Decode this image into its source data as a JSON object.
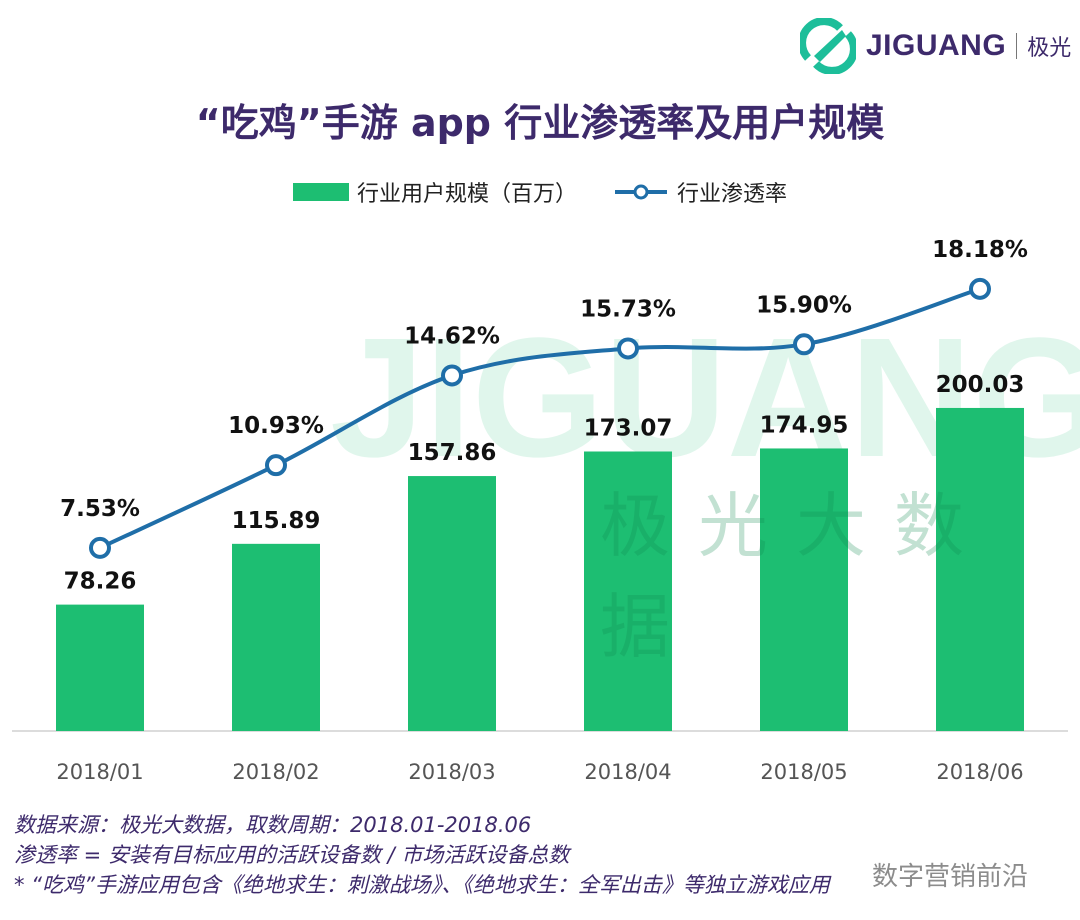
{
  "logo": {
    "text": "JIGUANG",
    "cn": "极光"
  },
  "watermark": {
    "text": "JIGUANG",
    "cn": "极光大数据",
    "stamp": "数字营销前沿"
  },
  "colors": {
    "bar": "#1dbe72",
    "line": "#1f6ea8",
    "title": "#3d2a6b"
  },
  "chart_data": {
    "type": "bar+line",
    "title": "“吃鸡”手游 app 行业渗透率及用户规模",
    "categories": [
      "2018/01",
      "2018/02",
      "2018/03",
      "2018/04",
      "2018/05",
      "2018/06"
    ],
    "series": [
      {
        "name": "行业用户规模（百万）",
        "type": "bar",
        "values": [
          78.26,
          115.89,
          157.86,
          173.07,
          174.95,
          200.03
        ],
        "labels": [
          "78.26",
          "115.89",
          "157.86",
          "173.07",
          "174.95",
          "200.03"
        ]
      },
      {
        "name": "行业渗透率",
        "type": "line",
        "unit": "%",
        "values": [
          7.53,
          10.93,
          14.62,
          15.73,
          15.9,
          18.18
        ],
        "labels": [
          "7.53%",
          "10.93%",
          "14.62%",
          "15.73%",
          "15.90%",
          "18.18%"
        ]
      }
    ],
    "legend": "top",
    "grid": false
  },
  "footer": {
    "line1": "数据来源：极光大数据，取数周期：2018.01-2018.06",
    "line2": "渗透率 = 安装有目标应用的活跃设备数 / 市场活跃设备总数",
    "line3": " * “吃鸡”手游应用包含《绝地求生：刺激战场》、《绝地求生：全军出击》等独立游戏应用"
  }
}
